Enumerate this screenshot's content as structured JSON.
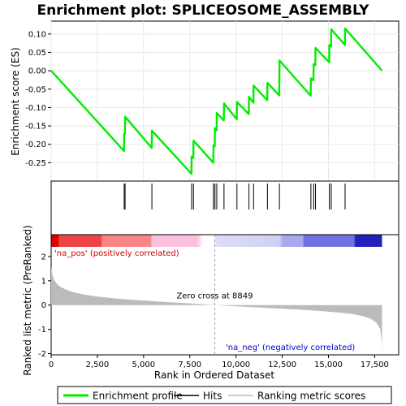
{
  "chart_data": {
    "type": "line",
    "title": "Enrichment plot: SPLICEOSOME_ASSEMBLY",
    "xlabel": "Rank in Ordered Dataset",
    "ylabel_top": "Enrichment score (ES)",
    "ylabel_bottom": "Ranked list metric (PreRanked)",
    "x_range": [
      0,
      18800
    ],
    "x_ticks": [
      0,
      2500,
      5000,
      7500,
      10000,
      12500,
      15000,
      17500
    ],
    "x_tick_labels": [
      "0",
      "2,500",
      "5,000",
      "7,500",
      "10,000",
      "12,500",
      "15,000",
      "17,500"
    ],
    "es_ylim": [
      -0.3,
      0.135
    ],
    "es_ticks": [
      0.1,
      0.05,
      0.0,
      -0.05,
      -0.1,
      -0.15,
      -0.2,
      -0.25
    ],
    "es_tick_labels": [
      "0.10",
      "0.05",
      "0.00",
      "-0.05",
      "-0.10",
      "-0.15",
      "-0.20",
      "-0.25"
    ],
    "metric_ylim": [
      -2.05,
      2.9
    ],
    "metric_ticks": [
      2,
      1,
      0,
      -1,
      -2
    ],
    "metric_tick_labels": [
      "2",
      "1",
      "0",
      "-1",
      "-2"
    ],
    "n_genes": 17900,
    "zero_cross": 8849,
    "zero_cross_label": "Zero cross at 8849",
    "pos_label": "'na_pos' (positively correlated)",
    "neg_label": "'na_neg' (negatively correlated)",
    "hits": [
      3950,
      4000,
      5450,
      7600,
      7700,
      8780,
      8860,
      8960,
      9350,
      10050,
      10700,
      10950,
      11700,
      12350,
      14050,
      14200,
      14300,
      15050,
      15150,
      15900
    ],
    "es_curve": [
      [
        0,
        0.0
      ],
      [
        3940,
        -0.218
      ],
      [
        3950,
        -0.172
      ],
      [
        3990,
        -0.172
      ],
      [
        4000,
        -0.125
      ],
      [
        5440,
        -0.21
      ],
      [
        5450,
        -0.163
      ],
      [
        7590,
        -0.28
      ],
      [
        7600,
        -0.233
      ],
      [
        7690,
        -0.237
      ],
      [
        7700,
        -0.19
      ],
      [
        8770,
        -0.25
      ],
      [
        8780,
        -0.203
      ],
      [
        8850,
        -0.205
      ],
      [
        8860,
        -0.156
      ],
      [
        8950,
        -0.162
      ],
      [
        8960,
        -0.115
      ],
      [
        9340,
        -0.135
      ],
      [
        9350,
        -0.089
      ],
      [
        10040,
        -0.132
      ],
      [
        10050,
        -0.085
      ],
      [
        10690,
        -0.118
      ],
      [
        10700,
        -0.071
      ],
      [
        10940,
        -0.087
      ],
      [
        10950,
        -0.04
      ],
      [
        11690,
        -0.08
      ],
      [
        11700,
        -0.033
      ],
      [
        12340,
        -0.067
      ],
      [
        12350,
        0.028
      ],
      [
        14040,
        -0.068
      ],
      [
        14050,
        -0.021
      ],
      [
        14190,
        -0.026
      ],
      [
        14200,
        0.018
      ],
      [
        14290,
        0.015
      ],
      [
        14300,
        0.062
      ],
      [
        15040,
        0.023
      ],
      [
        15050,
        0.07
      ],
      [
        15140,
        0.066
      ],
      [
        15150,
        0.113
      ],
      [
        15890,
        0.07
      ],
      [
        15900,
        0.115
      ],
      [
        17900,
        0.0
      ]
    ],
    "metric_curve": [
      [
        0,
        1.55
      ],
      [
        60,
        1.25
      ],
      [
        150,
        1.05
      ],
      [
        300,
        0.88
      ],
      [
        500,
        0.75
      ],
      [
        800,
        0.64
      ],
      [
        1200,
        0.53
      ],
      [
        1800,
        0.43
      ],
      [
        2500,
        0.35
      ],
      [
        3500,
        0.27
      ],
      [
        4500,
        0.21
      ],
      [
        5500,
        0.16
      ],
      [
        6500,
        0.11
      ],
      [
        7500,
        0.07
      ],
      [
        8300,
        0.03
      ],
      [
        8849,
        0.0
      ],
      [
        9500,
        -0.03
      ],
      [
        10500,
        -0.07
      ],
      [
        11500,
        -0.11
      ],
      [
        12500,
        -0.15
      ],
      [
        13500,
        -0.19
      ],
      [
        14500,
        -0.24
      ],
      [
        15500,
        -0.3
      ],
      [
        16300,
        -0.37
      ],
      [
        16900,
        -0.46
      ],
      [
        17300,
        -0.57
      ],
      [
        17600,
        -0.73
      ],
      [
        17800,
        -0.98
      ],
      [
        17870,
        -1.35
      ],
      [
        17900,
        -1.85
      ]
    ],
    "series_colors": {
      "enrichment": "#00ee00",
      "hits": "#000000",
      "metric": "#bbbbbb"
    },
    "legend": {
      "placement": "bottom",
      "items": [
        {
          "label": "Enrichment profile",
          "kind": "line",
          "color": "#00ee00"
        },
        {
          "label": "Hits",
          "kind": "line",
          "color": "#000000"
        },
        {
          "label": "Ranking metric scores",
          "kind": "line",
          "color": "#bbbbbb"
        }
      ]
    }
  }
}
